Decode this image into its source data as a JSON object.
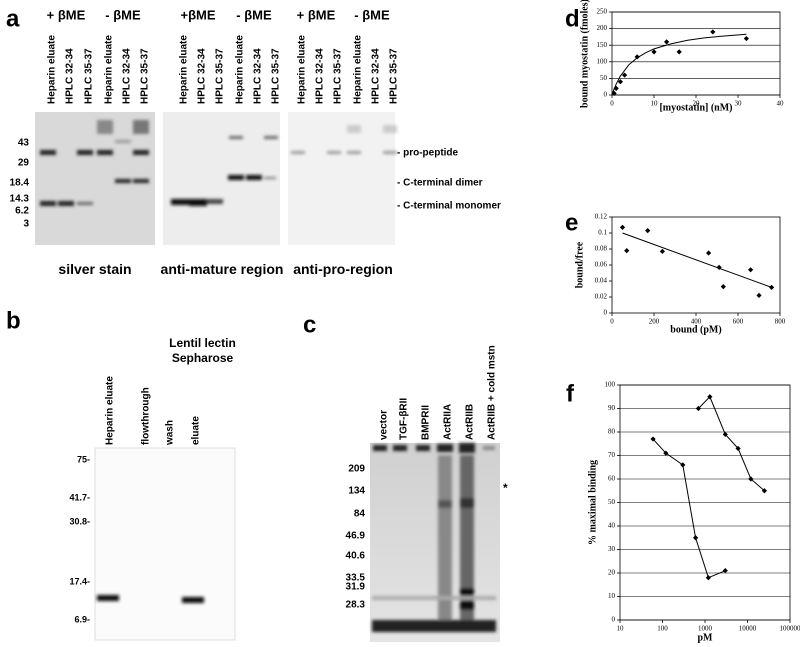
{
  "gel_panels": [
    {
      "label": "a",
      "groups": [
        {
          "header": "+ βME",
          "lanes": [
            "Heparin eluate",
            "HPLC 32-34",
            "HPLC 35-37"
          ]
        },
        {
          "header": "- βME",
          "lanes": [
            "Heparin eluate",
            "HPLC 32-34",
            "HPLC 35-37"
          ]
        },
        {
          "header": "+βME",
          "lanes": [
            "Heparin eluate",
            "HPLC 32-34",
            "HPLC 35-37"
          ]
        },
        {
          "header": "- βME",
          "lanes": [
            "Heparin eluate",
            "HPLC 32-34",
            "HPLC 35-37"
          ]
        },
        {
          "header": "+ βME",
          "lanes": [
            "Heparin eluate",
            "HPLC 32-34",
            "HPLC 35-37"
          ]
        },
        {
          "header": "- βME",
          "lanes": [
            "Heparin eluate",
            "HPLC 32-34",
            "HPLC 35-37"
          ]
        }
      ],
      "markers": [
        "43",
        "29",
        "18.4",
        "14.3",
        "6.2",
        "3"
      ],
      "band_labels": [
        "- pro-peptide",
        "- C-terminal dimer",
        "- C-terminal monomer"
      ],
      "captions": [
        "silver stain",
        "anti-mature region",
        "anti-pro-region"
      ]
    },
    {
      "label": "b",
      "title": "Lentil lectin Sepharose",
      "lanes": [
        "Heparin eluate",
        "flowthrough",
        "wash",
        "eluate"
      ],
      "markers": [
        "75-",
        "41.7-",
        "30.8-",
        "17.4-",
        "6.9-"
      ]
    },
    {
      "label": "c",
      "lanes": [
        "vector",
        "TGF-βRII",
        "BMPRII",
        "ActRIIA",
        "ActRIIB",
        "ActRIIB + cold mstn"
      ],
      "markers": [
        "209",
        "134",
        "84",
        "46.9",
        "40.6",
        "33.5",
        "31.9",
        "28.3"
      ],
      "annotation": "*"
    }
  ],
  "chart_data": [
    {
      "type": "scatter",
      "label": "d",
      "x_label": "[myostatin] (nM)",
      "y_label": "bound myostatin (fmoles)",
      "xlim": [
        0,
        40
      ],
      "xticks": [
        0,
        10,
        20,
        30,
        40
      ],
      "ylim": [
        0,
        250
      ],
      "yticks": [
        0,
        50,
        100,
        150,
        200,
        250
      ],
      "grid": true,
      "series": [
        {
          "color": "#000000",
          "markers": true,
          "line": false,
          "x": [
            0.5,
            1,
            2,
            3,
            6,
            10,
            13,
            16,
            24,
            32
          ],
          "values": [
            5,
            20,
            40,
            60,
            115,
            130,
            160,
            130,
            190,
            170
          ]
        },
        {
          "color": "#000000",
          "markers": false,
          "line": true,
          "x": [
            0.2,
            0.5,
            1,
            2,
            4,
            6,
            8,
            10,
            14,
            18,
            22,
            26,
            32
          ],
          "values": [
            8,
            18,
            33,
            57,
            91,
            112,
            127,
            139,
            154,
            165,
            172,
            177,
            183
          ]
        }
      ]
    },
    {
      "type": "scatter",
      "label": "e",
      "x_label": "bound (pM)",
      "y_label": "bound/free",
      "xlim": [
        0,
        800
      ],
      "xticks": [
        0,
        200,
        400,
        600,
        800
      ],
      "ylim": [
        0,
        0.12
      ],
      "yticks": [
        0,
        0.02,
        0.04,
        0.06,
        0.08,
        0.1,
        0.12
      ],
      "grid": false,
      "series": [
        {
          "color": "#000000",
          "markers": true,
          "line": false,
          "x": [
            50,
            70,
            170,
            240,
            460,
            510,
            530,
            660,
            700,
            760
          ],
          "values": [
            0.107,
            0.078,
            0.103,
            0.077,
            0.075,
            0.057,
            0.033,
            0.054,
            0.022,
            0.032
          ]
        },
        {
          "color": "#000000",
          "markers": false,
          "line": true,
          "x": [
            50,
            760
          ],
          "values": [
            0.1,
            0.032
          ]
        }
      ]
    },
    {
      "type": "line",
      "label": "f",
      "x_label": "pM",
      "y_label": "% maximal binding",
      "xlog": true,
      "xlim": [
        10,
        100000
      ],
      "xticks": [
        10,
        100,
        1000,
        10000,
        100000
      ],
      "ylim": [
        0,
        100
      ],
      "yticks": [
        0,
        10,
        20,
        30,
        40,
        50,
        60,
        70,
        80,
        90,
        100
      ],
      "grid": true,
      "series": [
        {
          "color": "#000000",
          "markers": true,
          "line": true,
          "x": [
            60,
            120,
            300,
            600,
            1200,
            3000
          ],
          "values": [
            77,
            71,
            66,
            35,
            18,
            21
          ]
        },
        {
          "color": "#000000",
          "markers": true,
          "line": true,
          "x": [
            700,
            1300,
            3000,
            6000,
            12000,
            25000
          ],
          "values": [
            90,
            95,
            79,
            73,
            60,
            55
          ]
        }
      ]
    }
  ]
}
